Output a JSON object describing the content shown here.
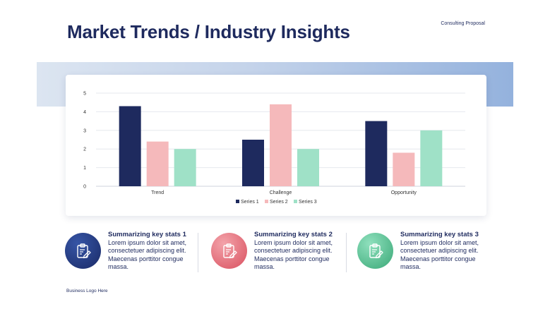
{
  "header": {
    "title": "Market Trends / Industry Insights",
    "top_label": "Consulting Proposal"
  },
  "colors": {
    "navy": "#1e2a5e",
    "pink": "#f5b9bb",
    "mint": "#9fe1c7",
    "band_start": "#dce5f1",
    "band_end": "#94b2dd"
  },
  "chart_data": {
    "type": "bar",
    "categories": [
      "Trend",
      "Challenge",
      "Opportunity"
    ],
    "series": [
      {
        "name": "Series 1",
        "values": [
          4.3,
          2.5,
          3.5
        ],
        "color": "#1e2a5e"
      },
      {
        "name": "Series 2",
        "values": [
          2.4,
          4.4,
          1.8
        ],
        "color": "#f5b9bb"
      },
      {
        "name": "Series 3",
        "values": [
          2,
          2,
          3
        ],
        "color": "#9fe1c7"
      }
    ],
    "yticks": [
      "0",
      "1",
      "2",
      "3",
      "4",
      "5"
    ],
    "ylim": [
      0,
      5
    ],
    "grid": true,
    "legend": "bottom"
  },
  "stats": [
    {
      "heading": "Summarizing key stats 1",
      "body": "Lorem ipsum dolor sit amet, consectetuer adipiscing elit. Maecenas porttitor congue massa.",
      "icon": "clipboard-icon",
      "gradient": [
        "#3655a6",
        "#1a2a66"
      ]
    },
    {
      "heading": "Summarizing key stats 2",
      "body": "Lorem ipsum dolor sit amet, consectetuer adipiscing elit. Maecenas porttitor congue massa.",
      "icon": "clipboard-icon",
      "gradient": [
        "#f3a3aa",
        "#d9505f"
      ]
    },
    {
      "heading": "Summarizing key stats 3",
      "body": "Lorem ipsum dolor sit amet, consectetuer adipiscing elit. Maecenas porttitor congue massa.",
      "icon": "clipboard-icon",
      "gradient": [
        "#8fe0bd",
        "#3aa877"
      ]
    }
  ],
  "footer": {
    "logo_text": "Business Logo Here"
  }
}
